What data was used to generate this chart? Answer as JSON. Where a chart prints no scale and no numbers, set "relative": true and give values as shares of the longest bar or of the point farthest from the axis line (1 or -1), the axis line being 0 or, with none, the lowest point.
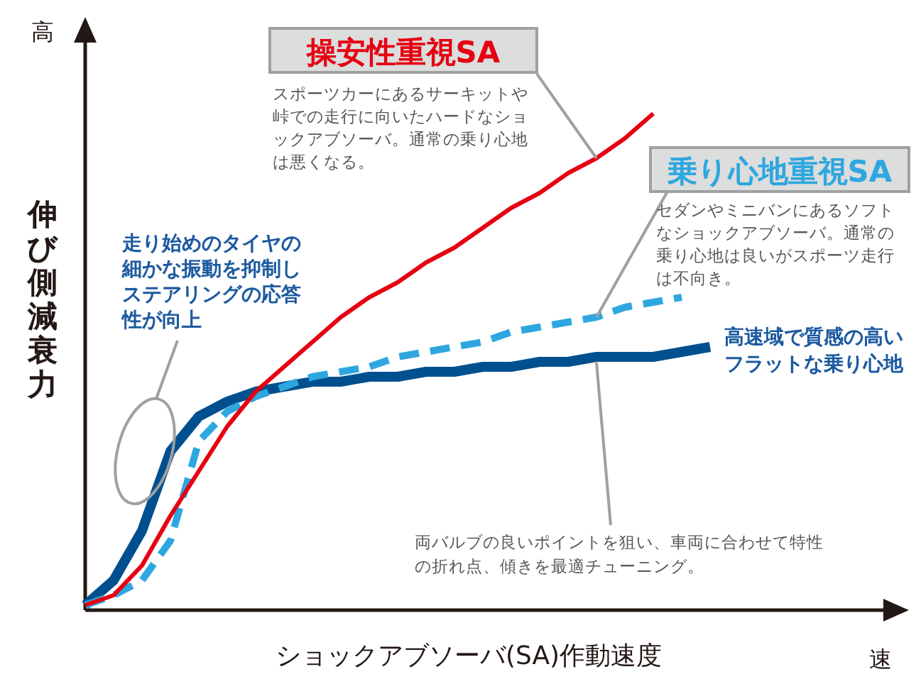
{
  "chart_data": {
    "type": "line",
    "relative": true,
    "line_style": "solid",
    "xlabel": "ショックアブソーバ(SA)作動速度",
    "ylabel": "伸び側減衰力",
    "categories": [
      null,
      null,
      null,
      null,
      null,
      null,
      null,
      null,
      null,
      null,
      null,
      null,
      null,
      null,
      null,
      null,
      null,
      null,
      null,
      null,
      null,
      null,
      null
    ],
    "series": [
      {
        "name": "操安性重視SA",
        "color": "#e60012",
        "values": [
          0.01,
          0.03,
          0.09,
          0.19,
          0.28,
          0.37,
          0.44,
          0.49,
          0.54,
          0.59,
          0.63,
          0.66,
          0.7,
          0.73,
          0.77,
          0.81,
          0.84,
          0.88,
          0.91,
          0.95,
          1,
          null,
          null
        ]
      },
      {
        "name": "乗り心地重視SA",
        "color": "#2ea7e0",
        "line_style": "dashed",
        "values": [
          0.01,
          0.03,
          0.06,
          0.14,
          0.34,
          0.4,
          0.43,
          0.45,
          0.47,
          0.48,
          0.49,
          0.51,
          0.52,
          0.53,
          0.54,
          0.56,
          0.57,
          0.58,
          0.59,
          0.61,
          0.62,
          0.63,
          null
        ]
      },
      {
        "color": "#00508f",
        "values": [
          0.01,
          0.06,
          0.16,
          0.32,
          0.39,
          0.42,
          0.44,
          0.45,
          0.46,
          0.46,
          0.47,
          0.47,
          0.48,
          0.48,
          0.49,
          0.49,
          0.5,
          0.5,
          0.51,
          0.51,
          0.51,
          0.52,
          0.53
        ]
      }
    ],
    "annotations": [
      "高",
      "速",
      "走り始めのタイヤの細かな振動を抑制しステアリングの応答性が向上",
      "スポーツカーにあるサーキットや峠での走行に向いたハードなショックアブソーバ。通常の乗り心地は悪くなる。",
      "セダンやミニバンにあるソフトなショックアブソーバ。通常の乗り心地は良いがスポーツ走行は不向き。",
      "高速域で質感の高いフラットな乗り心地",
      "両バルブの良いポイントを狙い、車両に合わせて特性の折れ点、傾きを最適チューニング。"
    ]
  }
}
